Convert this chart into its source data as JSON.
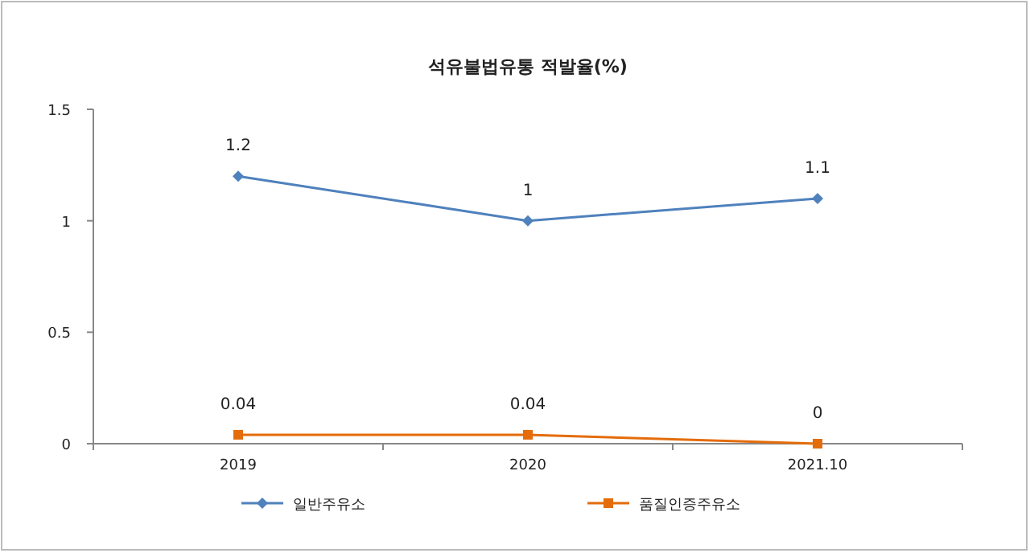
{
  "chart_data": {
    "type": "line",
    "title": "석유불법유통 적발율(%)",
    "categories": [
      "2019",
      "2020",
      "2021.10"
    ],
    "series": [
      {
        "name": "일반주유소",
        "color": "#4f81bd",
        "marker": "diamond",
        "values": [
          1.2,
          1,
          1.1
        ]
      },
      {
        "name": "품질인증주유소",
        "color": "#e46c0a",
        "marker": "square",
        "values": [
          0.04,
          0.04,
          0
        ]
      }
    ],
    "ylim": [
      0,
      1.5
    ],
    "yticks": [
      0,
      0.5,
      1,
      1.5
    ],
    "data_labels": true,
    "legend": "bottom",
    "grid": false
  }
}
